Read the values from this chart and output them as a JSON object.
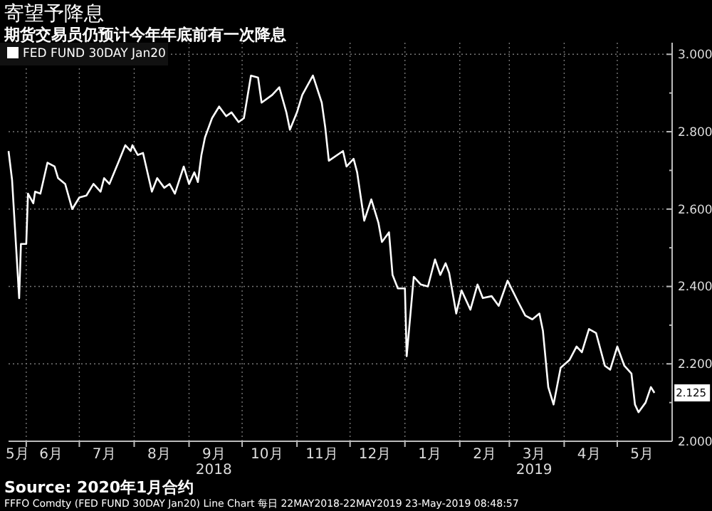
{
  "chart_data": {
    "type": "line",
    "title": "寄望予降息",
    "subtitle": "期货交易员仍预计今年年底前有一次降息",
    "legend": "top left",
    "grid": true,
    "marker": "none",
    "line_style": "solid",
    "series": [
      {
        "name": "FED FUND 30DAY Jan20",
        "color": "#ffffff",
        "x": [
          "2018-05-22",
          "2018-05-24",
          "2018-05-28",
          "2018-05-29",
          "2018-06-01",
          "2018-06-02",
          "2018-06-05",
          "2018-06-06",
          "2018-06-09",
          "2018-06-13",
          "2018-06-17",
          "2018-06-19",
          "2018-06-23",
          "2018-06-27",
          "2018-07-01",
          "2018-07-05",
          "2018-07-09",
          "2018-07-13",
          "2018-07-15",
          "2018-07-18",
          "2018-07-23",
          "2018-07-27",
          "2018-07-30",
          "2018-07-31",
          "2018-08-03",
          "2018-08-06",
          "2018-08-11",
          "2018-08-14",
          "2018-08-18",
          "2018-08-21",
          "2018-08-24",
          "2018-08-29",
          "2018-09-01",
          "2018-09-04",
          "2018-09-06",
          "2018-09-08",
          "2018-09-10",
          "2018-09-14",
          "2018-09-18",
          "2018-09-22",
          "2018-09-25",
          "2018-09-29",
          "2018-10-02",
          "2018-10-06",
          "2018-10-10",
          "2018-10-12",
          "2018-10-18",
          "2018-10-22",
          "2018-10-26",
          "2018-10-28",
          "2018-11-01",
          "2018-11-04",
          "2018-11-10",
          "2018-11-15",
          "2018-11-17",
          "2018-11-19",
          "2018-11-27",
          "2018-11-29",
          "2018-12-03",
          "2018-12-05",
          "2018-12-09",
          "2018-12-13",
          "2018-12-17",
          "2018-12-19",
          "2018-12-23",
          "2018-12-25",
          "2018-12-28",
          "2019-01-01",
          "2019-01-02",
          "2019-01-06",
          "2019-01-10",
          "2019-01-14",
          "2019-01-18",
          "2019-01-21",
          "2019-01-24",
          "2019-01-26",
          "2019-01-30",
          "2019-02-02",
          "2019-02-07",
          "2019-02-11",
          "2019-02-14",
          "2019-02-19",
          "2019-02-23",
          "2019-02-28",
          "2019-03-06",
          "2019-03-10",
          "2019-03-14",
          "2019-03-18",
          "2019-03-20",
          "2019-03-23",
          "2019-03-26",
          "2019-03-30",
          "2019-04-04",
          "2019-04-08",
          "2019-04-11",
          "2019-04-15",
          "2019-04-19",
          "2019-04-24",
          "2019-04-27",
          "2019-05-01",
          "2019-05-05",
          "2019-05-09",
          "2019-05-11",
          "2019-05-13",
          "2019-05-17",
          "2019-05-20",
          "2019-05-22"
        ],
        "values": [
          2.75,
          2.675,
          2.37,
          2.51,
          2.51,
          2.64,
          2.615,
          2.645,
          2.64,
          2.72,
          2.71,
          2.68,
          2.665,
          2.6,
          2.63,
          2.635,
          2.665,
          2.645,
          2.68,
          2.665,
          2.72,
          2.765,
          2.75,
          2.765,
          2.74,
          2.745,
          2.645,
          2.68,
          2.655,
          2.665,
          2.64,
          2.71,
          2.665,
          2.695,
          2.67,
          2.74,
          2.785,
          2.835,
          2.865,
          2.84,
          2.85,
          2.825,
          2.835,
          2.945,
          2.94,
          2.875,
          2.895,
          2.915,
          2.85,
          2.805,
          2.85,
          2.895,
          2.945,
          2.875,
          2.81,
          2.725,
          2.75,
          2.71,
          2.73,
          2.695,
          2.57,
          2.625,
          2.565,
          2.515,
          2.54,
          2.43,
          2.395,
          2.395,
          2.22,
          2.425,
          2.405,
          2.4,
          2.47,
          2.43,
          2.46,
          2.435,
          2.33,
          2.39,
          2.34,
          2.405,
          2.37,
          2.375,
          2.35,
          2.415,
          2.36,
          2.325,
          2.315,
          2.33,
          2.285,
          2.14,
          2.095,
          2.19,
          2.21,
          2.245,
          2.23,
          2.29,
          2.28,
          2.195,
          2.185,
          2.245,
          2.195,
          2.175,
          2.095,
          2.075,
          2.1,
          2.14,
          2.125
        ]
      }
    ],
    "xlim": [
      "2018-05-22",
      "2019-06-01"
    ],
    "xticks": [
      {
        "value": "2018-05-27",
        "label": "5月"
      },
      {
        "value": "2018-06-01",
        "label": null
      },
      {
        "value": "2018-06-15",
        "label": "6月"
      },
      {
        "value": "2018-07-01",
        "label": null
      },
      {
        "value": "2018-07-15",
        "label": "7月"
      },
      {
        "value": "2018-08-01",
        "label": null
      },
      {
        "value": "2018-08-15",
        "label": "8月"
      },
      {
        "value": "2018-09-01",
        "label": null
      },
      {
        "value": "2018-09-15",
        "label": "9月\n2018"
      },
      {
        "value": "2018-10-01",
        "label": null
      },
      {
        "value": "2018-10-15",
        "label": "10月"
      },
      {
        "value": "2018-11-01",
        "label": null
      },
      {
        "value": "2018-11-15",
        "label": "11月"
      },
      {
        "value": "2018-12-01",
        "label": null
      },
      {
        "value": "2018-12-15",
        "label": "12月"
      },
      {
        "value": "2019-01-01",
        "label": null
      },
      {
        "value": "2019-01-15",
        "label": "1月"
      },
      {
        "value": "2019-02-01",
        "label": null
      },
      {
        "value": "2019-02-15",
        "label": "2月"
      },
      {
        "value": "2019-03-01",
        "label": null
      },
      {
        "value": "2019-03-15",
        "label": "3月\n2019"
      },
      {
        "value": "2019-04-01",
        "label": null
      },
      {
        "value": "2019-04-15",
        "label": "4月"
      },
      {
        "value": "2019-05-01",
        "label": null
      },
      {
        "value": "2019-05-15",
        "label": "5月"
      }
    ],
    "ylim": [
      2.0,
      3.03
    ],
    "yticks": [
      {
        "value": 2.0,
        "label": "2.000"
      },
      {
        "value": 2.1,
        "label": null
      },
      {
        "value": 2.2,
        "label": "2.200"
      },
      {
        "value": 2.3,
        "label": null
      },
      {
        "value": 2.4,
        "label": "2.400"
      },
      {
        "value": 2.5,
        "label": null
      },
      {
        "value": 2.6,
        "label": "2.600"
      },
      {
        "value": 2.7,
        "label": null
      },
      {
        "value": 2.8,
        "label": "2.800"
      },
      {
        "value": 2.9,
        "label": null
      },
      {
        "value": 3.0,
        "label": "3.000"
      }
    ],
    "annotations": [
      {
        "text": "2.125",
        "x": "2019-05-22",
        "y": 2.125
      },
      "Source: 2020年1月合约",
      "FFFO Comdty (FED FUND 30DAY Jan20) Line Chart 每日 22MAY2018-22MAY2019 23-May-2019 08:48:57"
    ]
  }
}
